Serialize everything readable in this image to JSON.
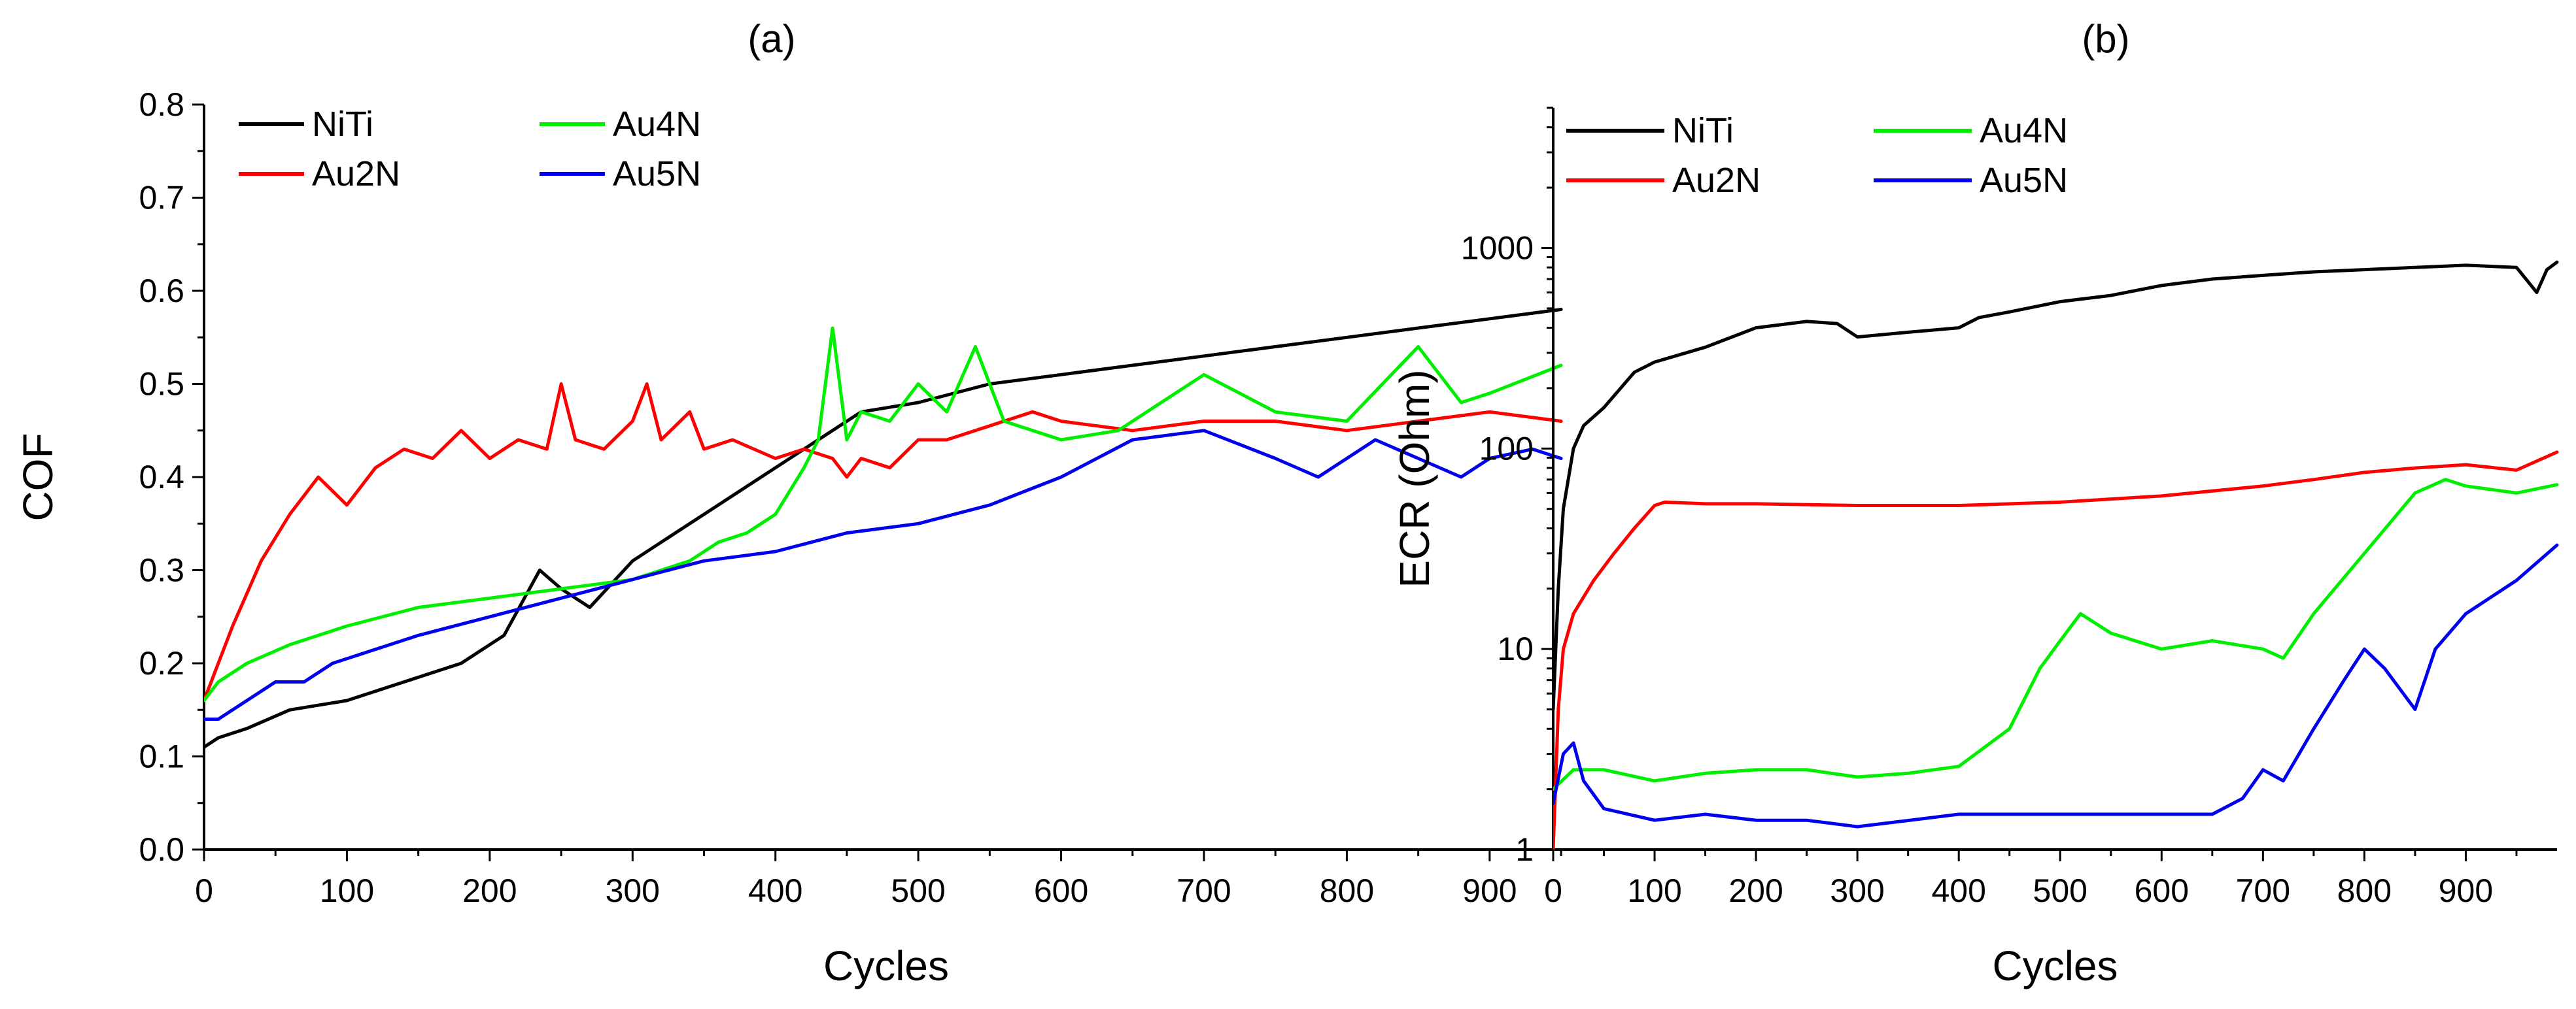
{
  "chart_data": [
    {
      "type": "line",
      "panel_label": "(a)",
      "xlabel": "Cycles",
      "ylabel": "COF",
      "xlim": [
        0,
        955
      ],
      "ylim": [
        0,
        0.8
      ],
      "xticks": [
        "0",
        "100",
        "200",
        "300",
        "400",
        "500",
        "600",
        "700",
        "800",
        "900"
      ],
      "yticks": [
        "0.0",
        "0.1",
        "0.2",
        "0.3",
        "0.4",
        "0.5",
        "0.6",
        "0.7",
        "0.8"
      ],
      "legend": {
        "position": "top-left",
        "columns": 2
      },
      "series": [
        {
          "name": "NiTi",
          "color": "#000000",
          "x": [
            0,
            10,
            30,
            60,
            100,
            140,
            180,
            210,
            235,
            250,
            270,
            300,
            330,
            360,
            400,
            430,
            460,
            500,
            550,
            600,
            650,
            700,
            750,
            800,
            850,
            900,
            950
          ],
          "y": [
            0.11,
            0.12,
            0.13,
            0.15,
            0.16,
            0.18,
            0.2,
            0.23,
            0.3,
            0.28,
            0.26,
            0.31,
            0.34,
            0.37,
            0.41,
            0.44,
            0.47,
            0.48,
            0.5,
            0.51,
            0.52,
            0.53,
            0.54,
            0.55,
            0.56,
            0.57,
            0.58
          ]
        },
        {
          "name": "Au2N",
          "color": "#ff0000",
          "x": [
            0,
            10,
            20,
            40,
            60,
            80,
            100,
            120,
            140,
            160,
            180,
            200,
            220,
            240,
            250,
            260,
            280,
            300,
            310,
            320,
            340,
            350,
            370,
            400,
            420,
            440,
            450,
            460,
            480,
            500,
            520,
            540,
            560,
            580,
            600,
            650,
            700,
            750,
            800,
            850,
            900,
            950
          ],
          "y": [
            0.16,
            0.2,
            0.24,
            0.31,
            0.36,
            0.4,
            0.37,
            0.41,
            0.43,
            0.42,
            0.45,
            0.42,
            0.44,
            0.43,
            0.5,
            0.44,
            0.43,
            0.46,
            0.5,
            0.44,
            0.47,
            0.43,
            0.44,
            0.42,
            0.43,
            0.42,
            0.4,
            0.42,
            0.41,
            0.44,
            0.44,
            0.45,
            0.46,
            0.47,
            0.46,
            0.45,
            0.46,
            0.46,
            0.45,
            0.46,
            0.47,
            0.46
          ]
        },
        {
          "name": "Au4N",
          "color": "#00ee00",
          "x": [
            0,
            10,
            30,
            60,
            100,
            150,
            200,
            250,
            300,
            340,
            360,
            380,
            400,
            420,
            430,
            440,
            450,
            460,
            480,
            500,
            520,
            540,
            560,
            600,
            640,
            700,
            750,
            800,
            850,
            880,
            900,
            950
          ],
          "y": [
            0.16,
            0.18,
            0.2,
            0.22,
            0.24,
            0.26,
            0.27,
            0.28,
            0.29,
            0.31,
            0.33,
            0.34,
            0.36,
            0.41,
            0.44,
            0.56,
            0.44,
            0.47,
            0.46,
            0.5,
            0.47,
            0.54,
            0.46,
            0.44,
            0.45,
            0.51,
            0.47,
            0.46,
            0.54,
            0.48,
            0.49,
            0.52
          ]
        },
        {
          "name": "Au5N",
          "color": "#0000ee",
          "x": [
            0,
            10,
            30,
            50,
            70,
            90,
            110,
            150,
            200,
            250,
            300,
            350,
            400,
            450,
            500,
            550,
            600,
            650,
            700,
            750,
            780,
            820,
            850,
            880,
            900,
            930,
            950
          ],
          "y": [
            0.14,
            0.14,
            0.16,
            0.18,
            0.18,
            0.2,
            0.21,
            0.23,
            0.25,
            0.27,
            0.29,
            0.31,
            0.32,
            0.34,
            0.35,
            0.37,
            0.4,
            0.44,
            0.45,
            0.42,
            0.4,
            0.44,
            0.42,
            0.4,
            0.42,
            0.43,
            0.42
          ]
        }
      ]
    },
    {
      "type": "line",
      "panel_label": "(b)",
      "xlabel": "Cycles",
      "ylabel": "ECR (Ohm)",
      "yscale": "log",
      "xlim": [
        0,
        990
      ],
      "ylim": [
        1,
        5000
      ],
      "xticks": [
        "0",
        "100",
        "200",
        "300",
        "400",
        "500",
        "600",
        "700",
        "800",
        "900"
      ],
      "yticks": [
        "1",
        "10",
        "100",
        "1000"
      ],
      "legend": {
        "position": "top-left",
        "columns": 2
      },
      "series": [
        {
          "name": "NiTi",
          "color": "#000000",
          "x": [
            0,
            5,
            10,
            20,
            30,
            50,
            80,
            100,
            150,
            200,
            250,
            280,
            300,
            350,
            400,
            420,
            450,
            500,
            550,
            600,
            650,
            700,
            750,
            800,
            850,
            900,
            950,
            970,
            980,
            990
          ],
          "y": [
            5,
            20,
            50,
            100,
            130,
            160,
            240,
            270,
            320,
            400,
            430,
            420,
            360,
            380,
            400,
            450,
            480,
            540,
            580,
            650,
            700,
            730,
            760,
            780,
            800,
            820,
            800,
            600,
            780,
            850
          ]
        },
        {
          "name": "Au2N",
          "color": "#ff0000",
          "x": [
            0,
            5,
            10,
            20,
            40,
            60,
            80,
            100,
            110,
            150,
            200,
            300,
            400,
            500,
            600,
            700,
            750,
            800,
            850,
            900,
            950,
            990
          ],
          "y": [
            1,
            5,
            10,
            15,
            22,
            30,
            40,
            52,
            54,
            53,
            53,
            52,
            52,
            54,
            58,
            65,
            70,
            76,
            80,
            83,
            78,
            96
          ]
        },
        {
          "name": "Au4N",
          "color": "#00ee00",
          "x": [
            0,
            20,
            50,
            100,
            150,
            200,
            250,
            300,
            350,
            400,
            450,
            480,
            500,
            520,
            550,
            600,
            650,
            700,
            720,
            750,
            800,
            850,
            880,
            900,
            950,
            990
          ],
          "y": [
            2,
            2.5,
            2.5,
            2.2,
            2.4,
            2.5,
            2.5,
            2.3,
            2.4,
            2.6,
            4,
            8,
            11,
            15,
            12,
            10,
            11,
            10,
            9,
            15,
            30,
            60,
            70,
            65,
            60,
            66
          ]
        },
        {
          "name": "Au5N",
          "color": "#0000ee",
          "x": [
            0,
            10,
            20,
            30,
            50,
            100,
            150,
            200,
            250,
            300,
            400,
            500,
            600,
            650,
            680,
            700,
            720,
            750,
            780,
            800,
            820,
            850,
            870,
            900,
            950,
            990
          ],
          "y": [
            1.7,
            3,
            3.4,
            2.2,
            1.6,
            1.4,
            1.5,
            1.4,
            1.4,
            1.3,
            1.5,
            1.5,
            1.5,
            1.5,
            1.8,
            2.5,
            2.2,
            4,
            7,
            10,
            8,
            5,
            10,
            15,
            22,
            33
          ]
        }
      ]
    }
  ]
}
